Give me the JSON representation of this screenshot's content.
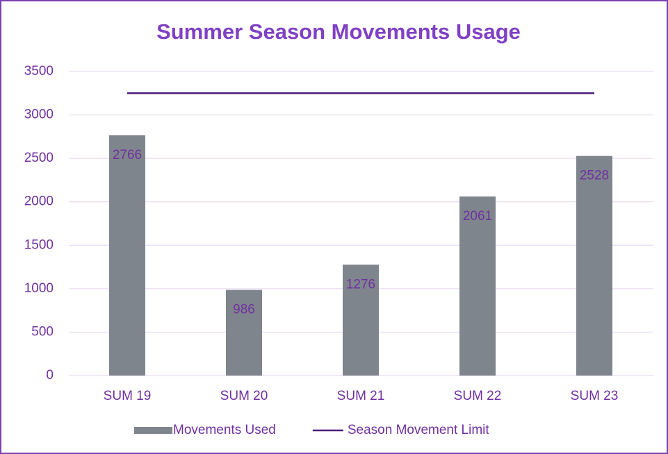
{
  "chart_data": {
    "type": "bar",
    "title": "Summer Season Movements Usage",
    "categories": [
      "SUM 19",
      "SUM 20",
      "SUM 21",
      "SUM 22",
      "SUM 23"
    ],
    "series": [
      {
        "name": "Movements Used",
        "color": "#7f858d",
        "values": [
          2766,
          986,
          1276,
          2061,
          2528
        ],
        "data_labels": true
      },
      {
        "name": "Season Movement Limit",
        "type": "line",
        "color": "#4b1d78",
        "values": [
          3250,
          3250,
          3250,
          3250,
          3250
        ]
      }
    ],
    "ylim": [
      0,
      3500
    ],
    "yticks": [
      0,
      500,
      1000,
      1500,
      2000,
      2500,
      3000,
      3500
    ],
    "grid": true,
    "legend": "bottom"
  }
}
